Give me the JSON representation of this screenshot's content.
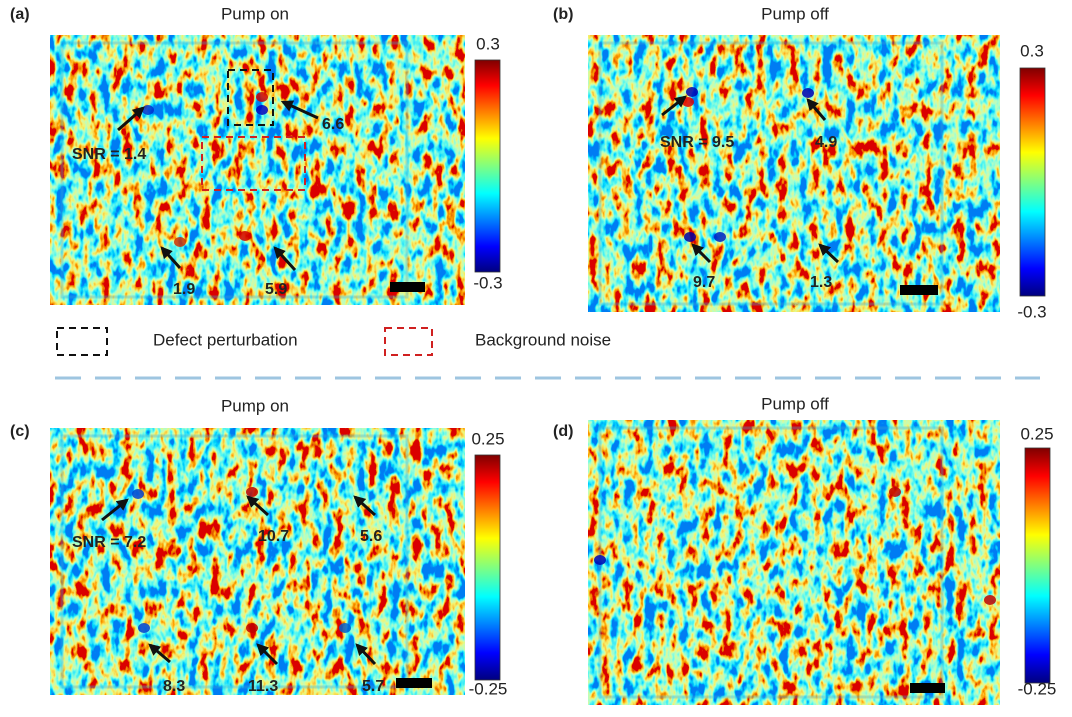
{
  "panels": [
    {
      "label": "(a)",
      "title": "Pump on",
      "colorbar_ticks": [
        "0.3",
        "-0.3"
      ],
      "annotations": [
        "SNR = 1.4",
        "6.6",
        "1.9",
        "5.9"
      ]
    },
    {
      "label": "(b)",
      "title": "Pump off",
      "colorbar_ticks": [
        "0.3",
        "-0.3"
      ],
      "annotations": [
        "SNR = 9.5",
        "4.9",
        "9.7",
        "1.3"
      ]
    },
    {
      "label": "(c)",
      "title": "Pump on",
      "colorbar_ticks": [
        "0.25",
        "-0.25"
      ],
      "annotations": [
        "SNR = 7.2",
        "10.7",
        "5.6",
        "8.3",
        "11.3",
        "5.7"
      ]
    },
    {
      "label": "(d)",
      "title": "Pump off",
      "colorbar_ticks": [
        "0.25",
        "-0.25"
      ],
      "annotations": []
    }
  ],
  "legend": [
    {
      "text": "Defect perturbation"
    },
    {
      "text": "Background noise"
    }
  ]
}
